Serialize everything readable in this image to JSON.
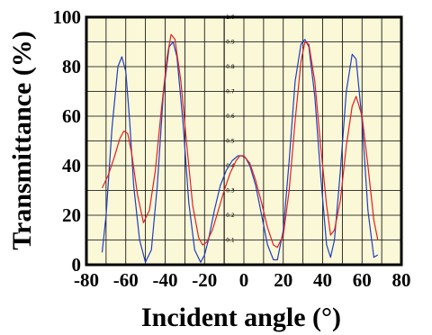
{
  "chart_data": {
    "type": "line",
    "xlabel": "Incident angle (°)",
    "ylabel": "Transmittance (%)",
    "xlim": [
      -80,
      80
    ],
    "ylim": [
      0,
      100
    ],
    "x_ticks": [
      "-80",
      "-60",
      "-40",
      "-20",
      "0",
      "20",
      "40",
      "60",
      "80"
    ],
    "y_ticks": [
      "0",
      "20",
      "40",
      "60",
      "80",
      "100"
    ],
    "inner_axis_ticks": [
      "0.1",
      "0.2",
      "0.3",
      "0.4",
      "0.5",
      "0.6",
      "0.7",
      "0.8",
      "0.9",
      "1.0"
    ],
    "grid": true,
    "background": "#fbf8d8",
    "series": [
      {
        "color": "#1f3fbf",
        "x": [
          -72,
          -70,
          -67,
          -64,
          -62,
          -60,
          -58,
          -56,
          -53,
          -50,
          -47,
          -44,
          -41,
          -38,
          -36,
          -34,
          -31,
          -28,
          -25,
          -22,
          -20,
          -18,
          -15,
          -12,
          -9,
          -6,
          -3,
          -1,
          1,
          3,
          6,
          9,
          12,
          15,
          17,
          20,
          23,
          26,
          29,
          31,
          33,
          36,
          39,
          42,
          44,
          46,
          49,
          52,
          55,
          57,
          60,
          63,
          66,
          68
        ],
        "y": [
          5,
          20,
          55,
          80,
          84,
          78,
          58,
          32,
          10,
          1,
          6,
          32,
          68,
          88,
          90,
          84,
          58,
          25,
          6,
          1,
          4,
          10,
          22,
          32,
          38,
          42,
          44,
          44,
          43,
          40,
          32,
          20,
          8,
          2,
          2,
          14,
          42,
          74,
          89,
          91,
          88,
          68,
          36,
          8,
          3,
          10,
          38,
          70,
          85,
          83,
          58,
          22,
          3,
          4
        ]
      },
      {
        "color": "#e02020",
        "x": [
          -72,
          -69,
          -66,
          -63,
          -61,
          -59,
          -57,
          -54,
          -51,
          -48,
          -45,
          -42,
          -39,
          -37,
          -35,
          -32,
          -29,
          -26,
          -23,
          -21,
          -19,
          -16,
          -13,
          -10,
          -7,
          -4,
          -2,
          0,
          3,
          6,
          9,
          12,
          15,
          17,
          20,
          23,
          26,
          29,
          31,
          33,
          36,
          39,
          42,
          44,
          46,
          49,
          52,
          55,
          57,
          60,
          63,
          66,
          68
        ],
        "y": [
          31,
          36,
          43,
          51,
          54,
          53,
          45,
          28,
          17,
          22,
          38,
          62,
          84,
          93,
          91,
          74,
          48,
          24,
          11,
          8,
          9,
          14,
          22,
          30,
          37,
          42,
          44,
          44,
          41,
          34,
          25,
          15,
          8,
          7,
          12,
          30,
          58,
          82,
          90,
          89,
          74,
          48,
          24,
          12,
          14,
          26,
          48,
          64,
          68,
          60,
          40,
          18,
          10
        ]
      }
    ]
  }
}
